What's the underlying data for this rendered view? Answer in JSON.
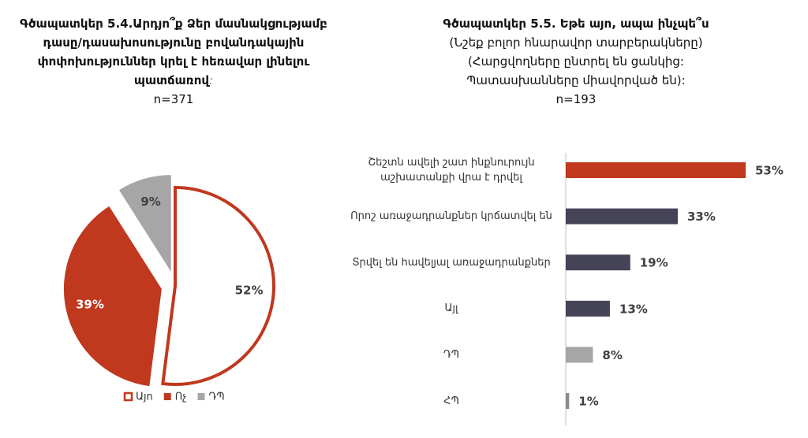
{
  "chart_data": [
    {
      "type": "pie",
      "title": "Գծապատկեր 5.4.Արդյո՞ք Ձեր մասնակցությամբ դասը/դասախոսությունը բովանդակային փոփոխություններ կրել է հեռավար լինելու պատճառով",
      "title_end": ":",
      "subtitle": "n=371",
      "categories": [
        "Այո",
        "Ոչ",
        "ԴՊ"
      ],
      "values": [
        52,
        39,
        9
      ],
      "value_labels": [
        "52%",
        "39%",
        "9%"
      ],
      "colors": [
        "#ffffff",
        "#c0381e",
        "#a6a6a6"
      ],
      "outline": "#c0381e",
      "legend": "bottom"
    },
    {
      "type": "hbar",
      "title": "Գծապատկեր 5.5. Եթե այո, ապա ինչպե՞ս",
      "subtitle_lines": [
        "(Նշեք բոլոր հնարավոր տարբերակները)",
        "(Հարցվողները ընտրել են ցանկից:",
        "Պատասխանները միավորված են):",
        "n=193"
      ],
      "categories": [
        "Շեշտն ավելի շատ ինքնուրույն աշխատանքի վրա է դրվել",
        "Որոշ առաջադրանքներ կրճատվել են",
        "Տրվել են հավելյալ առաջադրանքներ",
        "Այլ",
        "ԴՊ",
        "ՀՊ"
      ],
      "values": [
        53,
        33,
        19,
        13,
        8,
        1
      ],
      "value_labels": [
        "53%",
        "33%",
        "19%",
        "13%",
        "8%",
        "1%"
      ],
      "colors": [
        "#c0381e",
        "#454357",
        "#454357",
        "#454357",
        "#a6a6a6",
        "#8c8c8c"
      ],
      "xlim": [
        0,
        53
      ]
    }
  ]
}
